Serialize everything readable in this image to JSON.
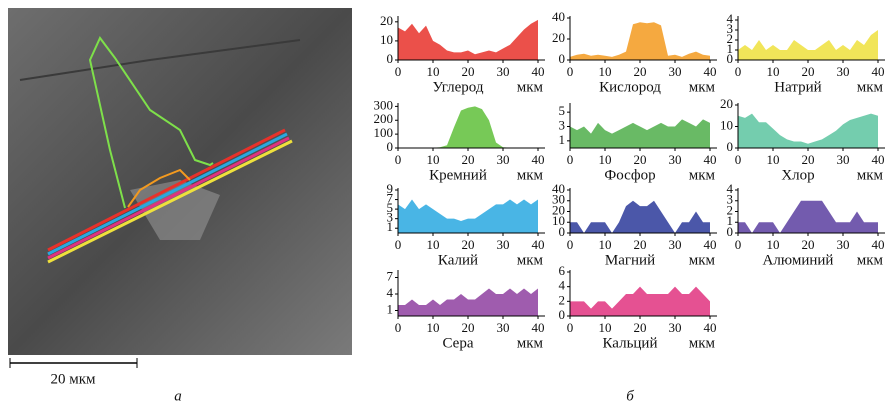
{
  "image": {
    "scale_bar": "20 мкм",
    "panel_label": "а"
  },
  "charts_panel_label": "б",
  "chart_data": [
    {
      "type": "area",
      "title": "Углерод",
      "xlabel": "мкм",
      "color": "#e8312a",
      "x": [
        0,
        2,
        4,
        6,
        8,
        10,
        12,
        14,
        16,
        18,
        20,
        22,
        24,
        26,
        28,
        30,
        32,
        34,
        36,
        38,
        40
      ],
      "values": [
        17,
        15,
        19,
        14,
        18,
        10,
        8,
        5,
        4,
        4,
        5,
        3,
        4,
        5,
        4,
        6,
        8,
        12,
        16,
        19,
        21
      ],
      "xlim": [
        0,
        42
      ],
      "xticks": [
        0,
        10,
        20,
        30,
        40
      ],
      "ylim": [
        0,
        22
      ],
      "yticks": [
        0,
        10,
        20
      ]
    },
    {
      "type": "area",
      "title": "Кислород",
      "xlabel": "мкм",
      "color": "#f39a1f",
      "x": [
        0,
        2,
        4,
        6,
        8,
        10,
        12,
        14,
        16,
        18,
        20,
        22,
        24,
        26,
        28,
        30,
        32,
        34,
        36,
        38,
        40
      ],
      "values": [
        3,
        5,
        6,
        4,
        5,
        4,
        3,
        5,
        8,
        34,
        36,
        35,
        36,
        33,
        4,
        5,
        3,
        6,
        8,
        5,
        4
      ],
      "xlim": [
        0,
        42
      ],
      "xticks": [
        0,
        10,
        20,
        30,
        40
      ],
      "ylim": [
        0,
        40
      ],
      "yticks": [
        0,
        20,
        40
      ]
    },
    {
      "type": "area",
      "title": "Натрий",
      "xlabel": "мкм",
      "color": "#efe03c",
      "x": [
        0,
        2,
        4,
        6,
        8,
        10,
        12,
        14,
        16,
        18,
        20,
        22,
        24,
        26,
        28,
        30,
        32,
        34,
        36,
        38,
        40
      ],
      "values": [
        1,
        1.5,
        1,
        2,
        1,
        1.5,
        1,
        1,
        2,
        1.5,
        1,
        1,
        1.5,
        2,
        1,
        1.5,
        1,
        2,
        1.5,
        2.5,
        3
      ],
      "xlim": [
        0,
        42
      ],
      "xticks": [
        0,
        10,
        20,
        30,
        40
      ],
      "ylim": [
        0,
        4.2
      ],
      "yticks": [
        0,
        1,
        2,
        3,
        4
      ]
    },
    {
      "type": "area",
      "title": "Кремний",
      "xlabel": "мкм",
      "color": "#5fbf3a",
      "x": [
        0,
        2,
        4,
        6,
        8,
        10,
        12,
        14,
        16,
        18,
        20,
        22,
        24,
        26,
        28,
        30,
        32,
        34,
        36,
        38,
        40
      ],
      "values": [
        0,
        0,
        0,
        0,
        0,
        2,
        5,
        20,
        150,
        270,
        290,
        300,
        280,
        200,
        40,
        5,
        2,
        0,
        0,
        0,
        0
      ],
      "xlim": [
        0,
        42
      ],
      "xticks": [
        0,
        10,
        20,
        30,
        40
      ],
      "ylim": [
        0,
        310
      ],
      "yticks": [
        0,
        100,
        200,
        300
      ]
    },
    {
      "type": "area",
      "title": "Фосфор",
      "xlabel": "мкм",
      "color": "#4fae4a",
      "x": [
        0,
        2,
        4,
        6,
        8,
        10,
        12,
        14,
        16,
        18,
        20,
        22,
        24,
        26,
        28,
        30,
        32,
        34,
        36,
        38,
        40
      ],
      "values": [
        3,
        2.5,
        3,
        2,
        3.5,
        2.5,
        2,
        2.5,
        3,
        3.5,
        3,
        2.5,
        3,
        3.5,
        3,
        3,
        4,
        3.5,
        3,
        4,
        3.5
      ],
      "xlim": [
        0,
        42
      ],
      "xticks": [
        0,
        10,
        20,
        30,
        40
      ],
      "ylim": [
        0,
        6
      ],
      "yticks": [
        1,
        3,
        5
      ]
    },
    {
      "type": "area",
      "title": "Хлор",
      "xlabel": "мкм",
      "color": "#5cc4a0",
      "x": [
        0,
        2,
        4,
        6,
        8,
        10,
        12,
        14,
        16,
        18,
        20,
        22,
        24,
        26,
        28,
        30,
        32,
        34,
        36,
        38,
        40
      ],
      "values": [
        15,
        14,
        16,
        12,
        12,
        9,
        6,
        4,
        3,
        3,
        2,
        3,
        4,
        6,
        8,
        11,
        13,
        14,
        15,
        16,
        15
      ],
      "xlim": [
        0,
        42
      ],
      "xticks": [
        0,
        10,
        20,
        30,
        40
      ],
      "ylim": [
        0,
        20
      ],
      "yticks": [
        0,
        10,
        20
      ]
    },
    {
      "type": "area",
      "title": "Калий",
      "xlabel": "мкм",
      "color": "#29a8e0",
      "x": [
        0,
        2,
        4,
        6,
        8,
        10,
        12,
        14,
        16,
        18,
        20,
        22,
        24,
        26,
        28,
        30,
        32,
        34,
        36,
        38,
        40
      ],
      "values": [
        6,
        5,
        7,
        5,
        6,
        5,
        4,
        3,
        3,
        2.5,
        3,
        3,
        4,
        5,
        6,
        6,
        7,
        6,
        7,
        6,
        7
      ],
      "xlim": [
        0,
        42
      ],
      "xticks": [
        0,
        10,
        20,
        30,
        40
      ],
      "ylim": [
        0,
        9
      ],
      "yticks": [
        1,
        3,
        5,
        7,
        9
      ]
    },
    {
      "type": "area",
      "title": "Магний",
      "xlabel": "мкм",
      "color": "#2b3a9a",
      "x": [
        0,
        2,
        4,
        6,
        8,
        10,
        12,
        14,
        16,
        18,
        20,
        22,
        24,
        26,
        28,
        30,
        32,
        34,
        36,
        38,
        40
      ],
      "values": [
        10,
        10,
        0,
        10,
        10,
        10,
        0,
        10,
        25,
        30,
        25,
        25,
        30,
        20,
        10,
        0,
        10,
        10,
        20,
        10,
        10
      ],
      "xlim": [
        0,
        42
      ],
      "xticks": [
        0,
        10,
        20,
        30,
        40
      ],
      "ylim": [
        0,
        40
      ],
      "yticks": [
        0,
        10,
        20,
        30,
        40
      ]
    },
    {
      "type": "area",
      "title": "Алюминий",
      "xlabel": "мкм",
      "color": "#5a3ea0",
      "x": [
        0,
        2,
        4,
        6,
        8,
        10,
        12,
        14,
        16,
        18,
        20,
        22,
        24,
        26,
        28,
        30,
        32,
        34,
        36,
        38,
        40
      ],
      "values": [
        1,
        1,
        0,
        1,
        1,
        1,
        0,
        1,
        2,
        3,
        3,
        3,
        3,
        2,
        1,
        1,
        1,
        2,
        1,
        1,
        1
      ],
      "xlim": [
        0,
        42
      ],
      "xticks": [
        0,
        10,
        20,
        30,
        40
      ],
      "ylim": [
        0,
        4
      ],
      "yticks": [
        0,
        1,
        2,
        3,
        4
      ]
    },
    {
      "type": "area",
      "title": "Сера",
      "xlabel": "мкм",
      "color": "#8e3fa0",
      "x": [
        0,
        2,
        4,
        6,
        8,
        10,
        12,
        14,
        16,
        18,
        20,
        22,
        24,
        26,
        28,
        30,
        32,
        34,
        36,
        38,
        40
      ],
      "values": [
        2,
        2,
        3,
        2,
        2,
        3,
        2,
        3,
        3,
        4,
        3,
        3,
        4,
        5,
        4,
        4,
        5,
        4,
        5,
        4,
        5
      ],
      "xlim": [
        0,
        42
      ],
      "xticks": [
        0,
        10,
        20,
        30,
        40
      ],
      "ylim": [
        0,
        8
      ],
      "yticks": [
        1,
        4,
        7
      ]
    },
    {
      "type": "area",
      "title": "Кальций",
      "xlabel": "мкм",
      "color": "#e0337f",
      "x": [
        0,
        2,
        4,
        6,
        8,
        10,
        12,
        14,
        16,
        18,
        20,
        22,
        24,
        26,
        28,
        30,
        32,
        34,
        36,
        38,
        40
      ],
      "values": [
        2,
        2,
        2,
        1,
        2,
        2,
        1,
        2,
        3,
        3,
        4,
        3,
        3,
        3,
        3,
        4,
        3,
        3,
        4,
        3,
        2
      ],
      "xlim": [
        0,
        42
      ],
      "xticks": [
        0,
        10,
        20,
        30,
        40
      ],
      "ylim": [
        0,
        6
      ],
      "yticks": [
        0,
        2,
        4,
        6
      ]
    }
  ]
}
